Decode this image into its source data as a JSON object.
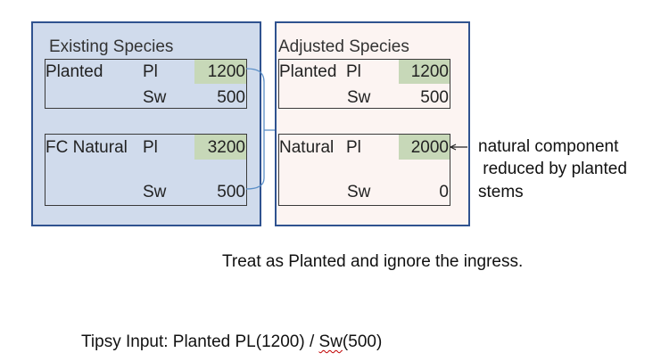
{
  "existing": {
    "title": "Existing Species",
    "planted": {
      "label": "Planted",
      "pl_label": "Pl",
      "pl_value": "1200",
      "sw_label": "Sw",
      "sw_value": "500"
    },
    "natural": {
      "label": "FC Natural",
      "pl_label": "Pl",
      "pl_value": "3200",
      "sw_label": "Sw",
      "sw_value": "500"
    }
  },
  "adjusted": {
    "title": "Adjusted Species",
    "planted": {
      "label": "Planted",
      "pl_label": "Pl",
      "pl_value": "1200",
      "sw_label": "Sw",
      "sw_value": "500"
    },
    "natural": {
      "label": "Natural",
      "pl_label": "Pl",
      "pl_value": "2000",
      "sw_label": "Sw",
      "sw_value": "0"
    }
  },
  "annotation": {
    "lines": [
      "natural component",
      " reduced by planted",
      "stems"
    ]
  },
  "treat_note": "Treat as Planted and ignore the ingress.",
  "tipsy": {
    "prefix": "Tipsy Input: Planted PL(1200) / ",
    "sw": "Sw",
    "suffix": "(500)"
  },
  "colors": {
    "existing_fill": "#d0dbec",
    "adjusted_fill": "#fcf4f2",
    "panel_border": "#2f528f",
    "highlight": "#c7d8b8",
    "connector": "#5b8fc7"
  }
}
